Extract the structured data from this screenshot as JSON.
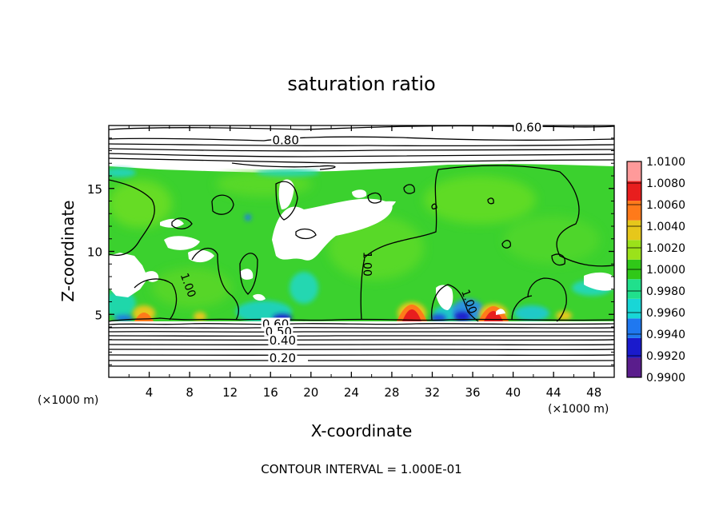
{
  "chart_data": {
    "type": "heatmap",
    "title": "saturation ratio",
    "xlabel": "X-coordinate",
    "ylabel": "Z-coordinate",
    "x_unit_left": "(×1000 m)",
    "x_unit_right": "(×1000 m)",
    "xlim": [
      0,
      50
    ],
    "ylim": [
      0,
      20
    ],
    "x_ticks": [
      4,
      8,
      12,
      16,
      20,
      24,
      28,
      32,
      36,
      40,
      44,
      48
    ],
    "y_ticks": [
      5,
      10,
      15
    ],
    "footer": "CONTOUR INTERVAL = 1.000E-01",
    "colorbar": {
      "levels": [
        0.99,
        0.992,
        0.994,
        0.996,
        0.998,
        1.0,
        1.002,
        1.004,
        1.006,
        1.008,
        1.01
      ],
      "labels": [
        "0.9900",
        "0.9920",
        "0.9940",
        "0.9960",
        "0.9980",
        "1.0000",
        "1.0020",
        "1.0040",
        "1.0060",
        "1.0080",
        "1.0100"
      ],
      "colors": [
        "#5a1d8c",
        "#1a1acc",
        "#1f78f0",
        "#18d6d6",
        "#20e08c",
        "#30c818",
        "#9be21a",
        "#e6c71b",
        "#ff7a1a",
        "#e81e1e",
        "#ff9a9a"
      ]
    },
    "contour_labels": [
      {
        "text": "0.80",
        "x": 17.5,
        "z": 18.7
      },
      {
        "text": "0.60",
        "x": 41.5,
        "z": 19.7
      },
      {
        "text": "0.60",
        "x": 16.5,
        "z": 4.1
      },
      {
        "text": "0.50",
        "x": 16.8,
        "z": 3.5
      },
      {
        "text": "0.40",
        "x": 17.2,
        "z": 2.8
      },
      {
        "text": "0.20",
        "x": 17.2,
        "z": 1.4
      },
      {
        "text": "1.00",
        "x": 25.5,
        "z": 9.0
      },
      {
        "text": "1.00",
        "x": 7.8,
        "z": 7.3
      },
      {
        "text": "1.00",
        "x": 35.6,
        "z": 6.0
      }
    ]
  }
}
